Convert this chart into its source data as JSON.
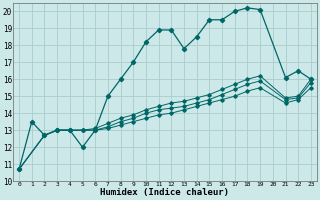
{
  "xlabel": "Humidex (Indice chaleur)",
  "bg_color": "#cce8e8",
  "grid_color": "#aacccc",
  "line_color": "#006666",
  "xlim": [
    -0.5,
    23.5
  ],
  "ylim": [
    10,
    20.5
  ],
  "yticks": [
    10,
    11,
    12,
    13,
    14,
    15,
    16,
    17,
    18,
    19,
    20
  ],
  "xticks": [
    0,
    1,
    2,
    3,
    4,
    5,
    6,
    7,
    8,
    9,
    10,
    11,
    12,
    13,
    14,
    15,
    16,
    17,
    18,
    19,
    20,
    21,
    22,
    23
  ],
  "line1_x": [
    0,
    1,
    2,
    3,
    4,
    5,
    6,
    7,
    8,
    9,
    10,
    11,
    12,
    13,
    14,
    15,
    16,
    17,
    18,
    19,
    21,
    22,
    23
  ],
  "line1_y": [
    10.7,
    13.5,
    12.7,
    13.0,
    13.0,
    12.0,
    13.0,
    15.0,
    16.0,
    17.0,
    18.2,
    18.9,
    18.9,
    17.8,
    18.5,
    19.5,
    19.5,
    20.0,
    20.2,
    20.1,
    16.1,
    16.5,
    16.0
  ],
  "line2_x": [
    0,
    2,
    3,
    4,
    5,
    6,
    7,
    8,
    9,
    10,
    11,
    12,
    13,
    14,
    15,
    16,
    17,
    18,
    19,
    21,
    22,
    23
  ],
  "line2_y": [
    10.7,
    12.7,
    13.0,
    13.0,
    13.0,
    13.1,
    13.4,
    13.7,
    13.9,
    14.2,
    14.4,
    14.6,
    14.7,
    14.9,
    15.1,
    15.4,
    15.7,
    16.0,
    16.2,
    14.9,
    15.0,
    16.0
  ],
  "line3_x": [
    0,
    2,
    3,
    4,
    5,
    6,
    7,
    8,
    9,
    10,
    11,
    12,
    13,
    14,
    15,
    16,
    17,
    18,
    19,
    21,
    22,
    23
  ],
  "line3_y": [
    10.7,
    12.7,
    13.0,
    13.0,
    13.0,
    13.0,
    13.2,
    13.5,
    13.7,
    14.0,
    14.2,
    14.3,
    14.4,
    14.6,
    14.8,
    15.1,
    15.4,
    15.7,
    15.9,
    14.8,
    14.9,
    15.8
  ],
  "line4_x": [
    0,
    2,
    3,
    4,
    5,
    6,
    7,
    8,
    9,
    10,
    11,
    12,
    13,
    14,
    15,
    16,
    17,
    18,
    19,
    21,
    22,
    23
  ],
  "line4_y": [
    10.7,
    12.7,
    13.0,
    13.0,
    13.0,
    13.0,
    13.1,
    13.3,
    13.5,
    13.7,
    13.9,
    14.0,
    14.2,
    14.4,
    14.6,
    14.8,
    15.0,
    15.3,
    15.5,
    14.6,
    14.8,
    15.5
  ]
}
